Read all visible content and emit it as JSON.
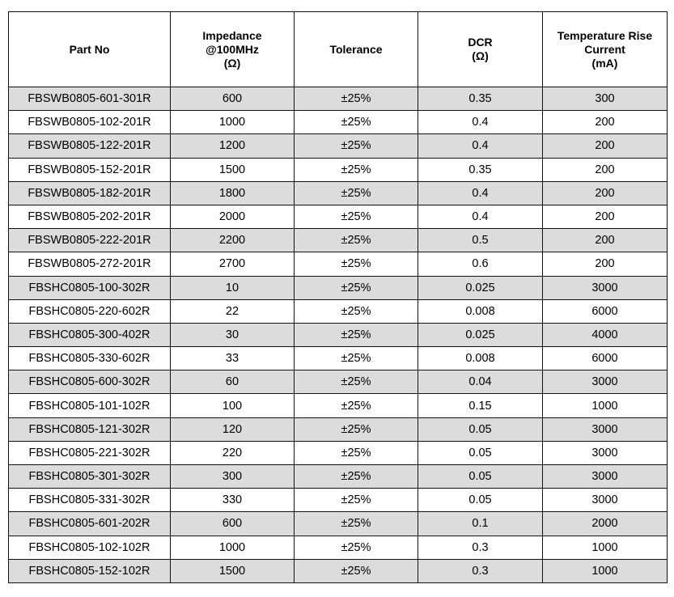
{
  "headers": [
    {
      "lines": [
        "Part No"
      ]
    },
    {
      "lines": [
        "Impedance",
        "@100MHz",
        "(Ω)"
      ]
    },
    {
      "lines": [
        "Tolerance"
      ]
    },
    {
      "lines": [
        "DCR",
        "(Ω)"
      ]
    },
    {
      "lines": [
        "Temperature Rise",
        "Current",
        "(mA)"
      ]
    }
  ],
  "rows": [
    [
      "FBSWB0805-601-301R",
      "600",
      "±25%",
      "0.35",
      "300"
    ],
    [
      "FBSWB0805-102-201R",
      "1000",
      "±25%",
      "0.4",
      "200"
    ],
    [
      "FBSWB0805-122-201R",
      "1200",
      "±25%",
      "0.4",
      "200"
    ],
    [
      "FBSWB0805-152-201R",
      "1500",
      "±25%",
      "0.35",
      "200"
    ],
    [
      "FBSWB0805-182-201R",
      "1800",
      "±25%",
      "0.4",
      "200"
    ],
    [
      "FBSWB0805-202-201R",
      "2000",
      "±25%",
      "0.4",
      "200"
    ],
    [
      "FBSWB0805-222-201R",
      "2200",
      "±25%",
      "0.5",
      "200"
    ],
    [
      "FBSWB0805-272-201R",
      "2700",
      "±25%",
      "0.6",
      "200"
    ],
    [
      "FBSHC0805-100-302R",
      "10",
      "±25%",
      "0.025",
      "3000"
    ],
    [
      "FBSHC0805-220-602R",
      "22",
      "±25%",
      "0.008",
      "6000"
    ],
    [
      "FBSHC0805-300-402R",
      "30",
      "±25%",
      "0.025",
      "4000"
    ],
    [
      "FBSHC0805-330-602R",
      "33",
      "±25%",
      "0.008",
      "6000"
    ],
    [
      "FBSHC0805-600-302R",
      "60",
      "±25%",
      "0.04",
      "3000"
    ],
    [
      "FBSHC0805-101-102R",
      "100",
      "±25%",
      "0.15",
      "1000"
    ],
    [
      "FBSHC0805-121-302R",
      "120",
      "±25%",
      "0.05",
      "3000"
    ],
    [
      "FBSHC0805-221-302R",
      "220",
      "±25%",
      "0.05",
      "3000"
    ],
    [
      "FBSHC0805-301-302R",
      "300",
      "±25%",
      "0.05",
      "3000"
    ],
    [
      "FBSHC0805-331-302R",
      "330",
      "±25%",
      "0.05",
      "3000"
    ],
    [
      "FBSHC0805-601-202R",
      "600",
      "±25%",
      "0.1",
      "2000"
    ],
    [
      "FBSHC0805-102-102R",
      "1000",
      "±25%",
      "0.3",
      "1000"
    ],
    [
      "FBSHC0805-152-102R",
      "1500",
      "±25%",
      "0.3",
      "1000"
    ]
  ]
}
